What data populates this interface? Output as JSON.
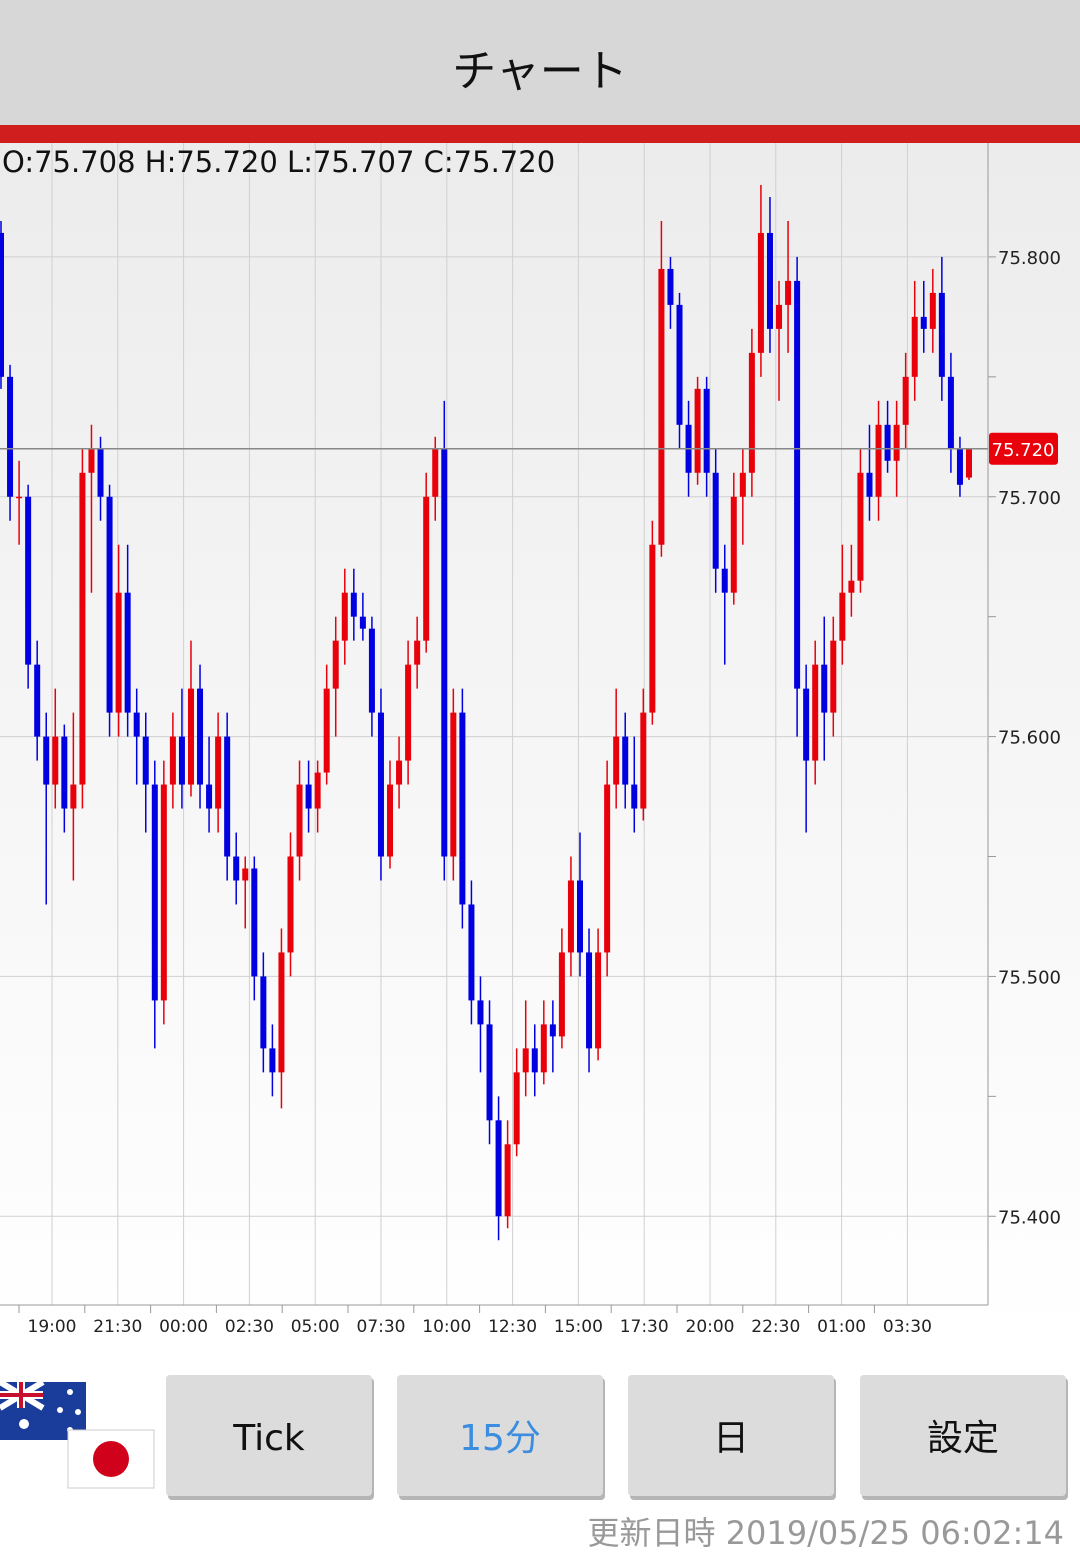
{
  "header": {
    "title": "チャート"
  },
  "chart_data": {
    "type": "candlestick",
    "ohlc_text": "O:75.708 H:75.720 L:75.707 C:75.720",
    "up_color": "#e8000b",
    "down_color": "#0000e0",
    "ylim": [
      75.363,
      75.8475
    ],
    "yticks": [
      {
        "value": 75.4,
        "label": "75.400"
      },
      {
        "value": 75.5,
        "label": "75.500"
      },
      {
        "value": 75.6,
        "label": "75.600"
      },
      {
        "value": 75.7,
        "label": "75.700"
      },
      {
        "value": 75.8,
        "label": "75.800"
      }
    ],
    "minor_yticks": [
      75.45,
      75.55,
      75.65,
      75.75
    ],
    "current_price": {
      "value": 75.72,
      "label": "75.720"
    },
    "x_labels": [
      "19:00",
      "21:30",
      "00:00",
      "02:30",
      "05:00",
      "07:30",
      "10:00",
      "12:30",
      "15:00",
      "17:30",
      "20:00",
      "22:30",
      "01:00",
      "03:30"
    ],
    "candles": [
      [
        75.81,
        75.815,
        75.745,
        75.75
      ],
      [
        75.75,
        75.755,
        75.69,
        75.7
      ],
      [
        75.7,
        75.715,
        75.68,
        75.7
      ],
      [
        75.7,
        75.705,
        75.62,
        75.63
      ],
      [
        75.63,
        75.64,
        75.59,
        75.6
      ],
      [
        75.6,
        75.61,
        75.53,
        75.58
      ],
      [
        75.58,
        75.62,
        75.57,
        75.6
      ],
      [
        75.6,
        75.605,
        75.56,
        75.57
      ],
      [
        75.57,
        75.61,
        75.54,
        75.58
      ],
      [
        75.58,
        75.72,
        75.57,
        75.71
      ],
      [
        75.71,
        75.73,
        75.66,
        75.72
      ],
      [
        75.72,
        75.725,
        75.69,
        75.7
      ],
      [
        75.7,
        75.705,
        75.6,
        75.61
      ],
      [
        75.61,
        75.68,
        75.6,
        75.66
      ],
      [
        75.66,
        75.68,
        75.6,
        75.61
      ],
      [
        75.61,
        75.62,
        75.58,
        75.6
      ],
      [
        75.6,
        75.61,
        75.56,
        75.58
      ],
      [
        75.58,
        75.59,
        75.47,
        75.49
      ],
      [
        75.49,
        75.59,
        75.48,
        75.58
      ],
      [
        75.58,
        75.61,
        75.57,
        75.6
      ],
      [
        75.6,
        75.62,
        75.57,
        75.58
      ],
      [
        75.58,
        75.64,
        75.575,
        75.62
      ],
      [
        75.62,
        75.63,
        75.57,
        75.58
      ],
      [
        75.58,
        75.6,
        75.56,
        75.57
      ],
      [
        75.57,
        75.61,
        75.56,
        75.6
      ],
      [
        75.6,
        75.61,
        75.54,
        75.55
      ],
      [
        75.55,
        75.56,
        75.53,
        75.54
      ],
      [
        75.54,
        75.55,
        75.52,
        75.545
      ],
      [
        75.545,
        75.55,
        75.49,
        75.5
      ],
      [
        75.5,
        75.51,
        75.46,
        75.47
      ],
      [
        75.47,
        75.48,
        75.45,
        75.46
      ],
      [
        75.46,
        75.52,
        75.445,
        75.51
      ],
      [
        75.51,
        75.56,
        75.5,
        75.55
      ],
      [
        75.55,
        75.59,
        75.54,
        75.58
      ],
      [
        75.58,
        75.59,
        75.56,
        75.57
      ],
      [
        75.57,
        75.59,
        75.56,
        75.585
      ],
      [
        75.585,
        75.63,
        75.58,
        75.62
      ],
      [
        75.62,
        75.65,
        75.6,
        75.64
      ],
      [
        75.64,
        75.67,
        75.63,
        75.66
      ],
      [
        75.66,
        75.67,
        75.64,
        75.65
      ],
      [
        75.65,
        75.66,
        75.64,
        75.645
      ],
      [
        75.645,
        75.65,
        75.6,
        75.61
      ],
      [
        75.61,
        75.62,
        75.54,
        75.55
      ],
      [
        75.55,
        75.59,
        75.545,
        75.58
      ],
      [
        75.58,
        75.6,
        75.57,
        75.59
      ],
      [
        75.59,
        75.64,
        75.58,
        75.63
      ],
      [
        75.63,
        75.65,
        75.62,
        75.64
      ],
      [
        75.64,
        75.71,
        75.635,
        75.7
      ],
      [
        75.7,
        75.725,
        75.69,
        75.72
      ],
      [
        75.72,
        75.74,
        75.54,
        75.55
      ],
      [
        75.55,
        75.62,
        75.54,
        75.61
      ],
      [
        75.61,
        75.62,
        75.52,
        75.53
      ],
      [
        75.53,
        75.54,
        75.48,
        75.49
      ],
      [
        75.49,
        75.5,
        75.46,
        75.48
      ],
      [
        75.48,
        75.49,
        75.43,
        75.44
      ],
      [
        75.44,
        75.45,
        75.39,
        75.4
      ],
      [
        75.4,
        75.44,
        75.395,
        75.43
      ],
      [
        75.43,
        75.47,
        75.425,
        75.46
      ],
      [
        75.46,
        75.49,
        75.45,
        75.47
      ],
      [
        75.47,
        75.48,
        75.45,
        75.46
      ],
      [
        75.46,
        75.49,
        75.455,
        75.48
      ],
      [
        75.48,
        75.49,
        75.46,
        75.475
      ],
      [
        75.475,
        75.52,
        75.47,
        75.51
      ],
      [
        75.51,
        75.55,
        75.5,
        75.54
      ],
      [
        75.54,
        75.56,
        75.5,
        75.51
      ],
      [
        75.51,
        75.52,
        75.46,
        75.47
      ],
      [
        75.47,
        75.52,
        75.465,
        75.51
      ],
      [
        75.51,
        75.59,
        75.5,
        75.58
      ],
      [
        75.58,
        75.62,
        75.57,
        75.6
      ],
      [
        75.6,
        75.61,
        75.57,
        75.58
      ],
      [
        75.58,
        75.6,
        75.56,
        75.57
      ],
      [
        75.57,
        75.62,
        75.565,
        75.61
      ],
      [
        75.61,
        75.69,
        75.605,
        75.68
      ],
      [
        75.68,
        75.815,
        75.675,
        75.795
      ],
      [
        75.795,
        75.8,
        75.77,
        75.78
      ],
      [
        75.78,
        75.785,
        75.72,
        75.73
      ],
      [
        75.73,
        75.74,
        75.7,
        75.71
      ],
      [
        75.71,
        75.75,
        75.705,
        75.745
      ],
      [
        75.745,
        75.75,
        75.7,
        75.71
      ],
      [
        75.71,
        75.72,
        75.66,
        75.67
      ],
      [
        75.67,
        75.68,
        75.63,
        75.66
      ],
      [
        75.66,
        75.71,
        75.655,
        75.7
      ],
      [
        75.7,
        75.72,
        75.68,
        75.71
      ],
      [
        75.71,
        75.77,
        75.7,
        75.76
      ],
      [
        75.76,
        75.83,
        75.75,
        75.81
      ],
      [
        75.81,
        75.825,
        75.76,
        75.77
      ],
      [
        75.77,
        75.79,
        75.74,
        75.78
      ],
      [
        75.78,
        75.815,
        75.76,
        75.79
      ],
      [
        75.79,
        75.8,
        75.6,
        75.62
      ],
      [
        75.62,
        75.63,
        75.56,
        75.59
      ],
      [
        75.59,
        75.64,
        75.58,
        75.63
      ],
      [
        75.63,
        75.65,
        75.59,
        75.61
      ],
      [
        75.61,
        75.65,
        75.6,
        75.64
      ],
      [
        75.64,
        75.68,
        75.63,
        75.66
      ],
      [
        75.66,
        75.68,
        75.65,
        75.665
      ],
      [
        75.665,
        75.72,
        75.66,
        75.71
      ],
      [
        75.71,
        75.73,
        75.69,
        75.7
      ],
      [
        75.7,
        75.74,
        75.69,
        75.73
      ],
      [
        75.73,
        75.74,
        75.71,
        75.715
      ],
      [
        75.715,
        75.74,
        75.7,
        75.73
      ],
      [
        75.73,
        75.76,
        75.72,
        75.75
      ],
      [
        75.75,
        75.79,
        75.74,
        75.775
      ],
      [
        75.775,
        75.79,
        75.76,
        75.77
      ],
      [
        75.77,
        75.795,
        75.76,
        75.785
      ],
      [
        75.785,
        75.8,
        75.74,
        75.75
      ],
      [
        75.75,
        75.76,
        75.71,
        75.72
      ],
      [
        75.72,
        75.725,
        75.7,
        75.705
      ],
      [
        75.708,
        75.72,
        75.707,
        75.72
      ]
    ]
  },
  "buttons": [
    "Tick",
    "15分",
    "日",
    "設定"
  ],
  "footer": {
    "label": "更新日時",
    "timestamp": "2019/05/25 06:02:14"
  }
}
